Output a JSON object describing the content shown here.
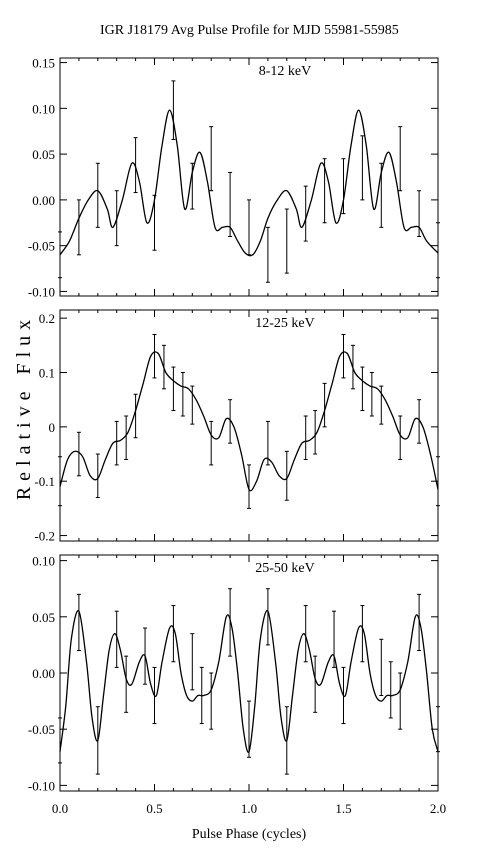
{
  "title": "IGR J18179 Avg Pulse Profile for MJD 55981-55985",
  "ylabel": "Relative Flux",
  "xlabel": "Pulse Phase (cycles)",
  "chart_data": [
    {
      "type": "line",
      "label": "8-12 keV",
      "xlim": [
        0,
        2
      ],
      "ylim": [
        -0.105,
        0.155
      ],
      "yticks": [
        -0.1,
        -0.05,
        0.0,
        0.05,
        0.1,
        0.15
      ],
      "ytick_labels": [
        "-0.10",
        "-0.05",
        "0.00",
        "0.05",
        "0.10",
        "0.15"
      ],
      "points": {
        "x": [
          0.0,
          0.1,
          0.2,
          0.3,
          0.4,
          0.5,
          0.6,
          0.7,
          0.8,
          0.9,
          1.0,
          1.1,
          1.2,
          1.3,
          1.4,
          1.5,
          1.6,
          1.7,
          1.8,
          1.9,
          2.0
        ],
        "y": [
          -0.06,
          -0.03,
          0.005,
          -0.02,
          0.038,
          -0.025,
          0.098,
          0.015,
          0.045,
          -0.005,
          -0.03,
          -0.06,
          -0.045,
          -0.015,
          0.01,
          0.015,
          0.035,
          0.005,
          0.045,
          -0.015,
          -0.055
        ],
        "err": [
          0.025,
          0.03,
          0.035,
          0.03,
          0.03,
          0.03,
          0.032,
          0.025,
          0.035,
          0.035,
          0.03,
          0.03,
          0.035,
          0.03,
          0.035,
          0.03,
          0.035,
          0.035,
          0.035,
          0.025,
          0.03
        ]
      },
      "curve": {
        "x": [
          0.0,
          0.05,
          0.1,
          0.15,
          0.2,
          0.25,
          0.28,
          0.33,
          0.38,
          0.42,
          0.46,
          0.5,
          0.54,
          0.58,
          0.62,
          0.66,
          0.7,
          0.74,
          0.78,
          0.82,
          0.86,
          0.9,
          0.94,
          0.98,
          1.02,
          1.06,
          1.1,
          1.15,
          1.2,
          1.25,
          1.28,
          1.33,
          1.38,
          1.42,
          1.46,
          1.5,
          1.54,
          1.58,
          1.62,
          1.66,
          1.7,
          1.74,
          1.78,
          1.82,
          1.86,
          1.9,
          1.94,
          2.0
        ],
        "y": [
          -0.06,
          -0.045,
          -0.02,
          0.0,
          0.01,
          -0.01,
          -0.03,
          0.0,
          0.04,
          0.02,
          -0.025,
          0.0,
          0.06,
          0.098,
          0.06,
          -0.01,
          0.03,
          0.052,
          0.02,
          -0.03,
          -0.03,
          -0.03,
          -0.045,
          -0.058,
          -0.06,
          -0.045,
          -0.02,
          0.0,
          0.01,
          -0.01,
          -0.03,
          0.0,
          0.04,
          0.02,
          -0.025,
          0.0,
          0.06,
          0.098,
          0.06,
          -0.01,
          0.03,
          0.052,
          0.02,
          -0.03,
          -0.03,
          -0.03,
          -0.045,
          -0.058
        ]
      }
    },
    {
      "type": "line",
      "label": "12-25 keV",
      "xlim": [
        0,
        2
      ],
      "ylim": [
        -0.21,
        0.215
      ],
      "yticks": [
        -0.2,
        -0.1,
        0.0,
        0.1,
        0.2
      ],
      "ytick_labels": [
        "-0.2",
        "-0.1",
        "0",
        "0.1",
        "0.2"
      ],
      "points": {
        "x": [
          0.0,
          0.1,
          0.2,
          0.3,
          0.35,
          0.4,
          0.5,
          0.55,
          0.6,
          0.65,
          0.7,
          0.8,
          0.9,
          1.0,
          1.1,
          1.2,
          1.3,
          1.35,
          1.4,
          1.5,
          1.55,
          1.6,
          1.65,
          1.7,
          1.8,
          1.9,
          2.0
        ],
        "y": [
          -0.1,
          -0.05,
          -0.09,
          -0.03,
          -0.02,
          0.02,
          0.13,
          0.11,
          0.07,
          0.06,
          0.04,
          -0.03,
          0.01,
          -0.11,
          -0.03,
          -0.09,
          -0.02,
          -0.01,
          0.04,
          0.13,
          0.11,
          0.07,
          0.06,
          0.04,
          -0.02,
          0.01,
          -0.1
        ],
        "err": [
          0.045,
          0.04,
          0.04,
          0.04,
          0.04,
          0.04,
          0.04,
          0.04,
          0.04,
          0.04,
          0.035,
          0.04,
          0.04,
          0.04,
          0.04,
          0.045,
          0.04,
          0.04,
          0.04,
          0.04,
          0.04,
          0.04,
          0.04,
          0.035,
          0.04,
          0.04,
          0.045
        ]
      },
      "curve": {
        "x": [
          0.0,
          0.04,
          0.08,
          0.12,
          0.16,
          0.2,
          0.24,
          0.28,
          0.32,
          0.36,
          0.4,
          0.44,
          0.48,
          0.52,
          0.56,
          0.6,
          0.64,
          0.68,
          0.72,
          0.76,
          0.8,
          0.84,
          0.88,
          0.92,
          0.96,
          1.0,
          1.04,
          1.08,
          1.12,
          1.16,
          1.2,
          1.24,
          1.28,
          1.32,
          1.36,
          1.4,
          1.44,
          1.48,
          1.52,
          1.56,
          1.6,
          1.64,
          1.68,
          1.72,
          1.76,
          1.8,
          1.84,
          1.88,
          1.92,
          1.96,
          2.0
        ],
        "y": [
          -0.11,
          -0.06,
          -0.045,
          -0.055,
          -0.09,
          -0.095,
          -0.06,
          -0.03,
          -0.025,
          -0.01,
          0.03,
          0.08,
          0.13,
          0.135,
          0.1,
          0.085,
          0.075,
          0.07,
          0.05,
          0.02,
          -0.015,
          -0.02,
          0.015,
          0.0,
          -0.05,
          -0.115,
          -0.1,
          -0.06,
          -0.065,
          -0.09,
          -0.095,
          -0.06,
          -0.03,
          -0.025,
          -0.01,
          0.03,
          0.08,
          0.13,
          0.135,
          0.1,
          0.085,
          0.075,
          0.07,
          0.05,
          0.02,
          -0.015,
          -0.02,
          0.015,
          0.0,
          -0.05,
          -0.115
        ]
      }
    },
    {
      "type": "line",
      "label": "25-50 keV",
      "xlim": [
        0,
        2
      ],
      "ylim": [
        -0.105,
        0.105
      ],
      "yticks": [
        -0.1,
        -0.05,
        0.0,
        0.05,
        0.1
      ],
      "ytick_labels": [
        "-0.10",
        "-0.05",
        "0.00",
        "0.05",
        "0.10"
      ],
      "points": {
        "x": [
          0.0,
          0.1,
          0.2,
          0.3,
          0.35,
          0.45,
          0.5,
          0.6,
          0.7,
          0.75,
          0.8,
          0.9,
          1.0,
          1.1,
          1.2,
          1.3,
          1.35,
          1.45,
          1.5,
          1.6,
          1.7,
          1.75,
          1.8,
          1.9,
          2.0
        ],
        "y": [
          -0.06,
          0.045,
          -0.06,
          0.03,
          -0.01,
          0.015,
          -0.02,
          0.035,
          0.01,
          -0.02,
          -0.025,
          0.045,
          -0.05,
          0.05,
          -0.06,
          0.035,
          -0.01,
          0.03,
          -0.02,
          0.035,
          0.005,
          -0.015,
          -0.025,
          0.045,
          -0.05
        ],
        "err": [
          0.02,
          0.025,
          0.03,
          0.025,
          0.025,
          0.025,
          0.025,
          0.025,
          0.025,
          0.025,
          0.025,
          0.03,
          0.025,
          0.025,
          0.03,
          0.025,
          0.025,
          0.025,
          0.025,
          0.025,
          0.025,
          0.025,
          0.025,
          0.025,
          0.02
        ]
      },
      "curve": {
        "x": [
          0.0,
          0.03,
          0.06,
          0.1,
          0.14,
          0.17,
          0.2,
          0.23,
          0.26,
          0.29,
          0.32,
          0.35,
          0.38,
          0.42,
          0.45,
          0.48,
          0.51,
          0.54,
          0.58,
          0.61,
          0.64,
          0.67,
          0.7,
          0.73,
          0.76,
          0.8,
          0.84,
          0.88,
          0.91,
          0.94,
          0.97,
          1.0,
          1.03,
          1.06,
          1.1,
          1.14,
          1.17,
          1.2,
          1.23,
          1.26,
          1.29,
          1.32,
          1.35,
          1.38,
          1.42,
          1.45,
          1.48,
          1.51,
          1.54,
          1.58,
          1.61,
          1.64,
          1.67,
          1.7,
          1.73,
          1.76,
          1.8,
          1.84,
          1.88,
          1.91,
          1.94,
          1.97,
          2.0
        ],
        "y": [
          -0.07,
          -0.03,
          0.03,
          0.055,
          0.01,
          -0.04,
          -0.06,
          -0.02,
          0.02,
          0.035,
          0.02,
          -0.005,
          -0.01,
          0.01,
          0.015,
          -0.01,
          -0.02,
          0.01,
          0.04,
          0.035,
          0.0,
          -0.02,
          -0.025,
          -0.02,
          -0.02,
          -0.015,
          0.01,
          0.05,
          0.04,
          0.0,
          -0.05,
          -0.07,
          -0.03,
          0.03,
          0.055,
          0.01,
          -0.04,
          -0.06,
          -0.02,
          0.02,
          0.035,
          0.02,
          -0.005,
          -0.01,
          0.01,
          0.015,
          -0.01,
          -0.02,
          0.01,
          0.04,
          0.035,
          0.0,
          -0.02,
          -0.025,
          -0.02,
          -0.02,
          -0.015,
          0.01,
          0.05,
          0.04,
          0.0,
          -0.05,
          -0.07
        ]
      }
    }
  ],
  "xticks": [
    0.0,
    0.5,
    1.0,
    1.5,
    2.0
  ],
  "xtick_labels": [
    "0.0",
    "0.5",
    "1.0",
    "1.5",
    "2.0"
  ]
}
